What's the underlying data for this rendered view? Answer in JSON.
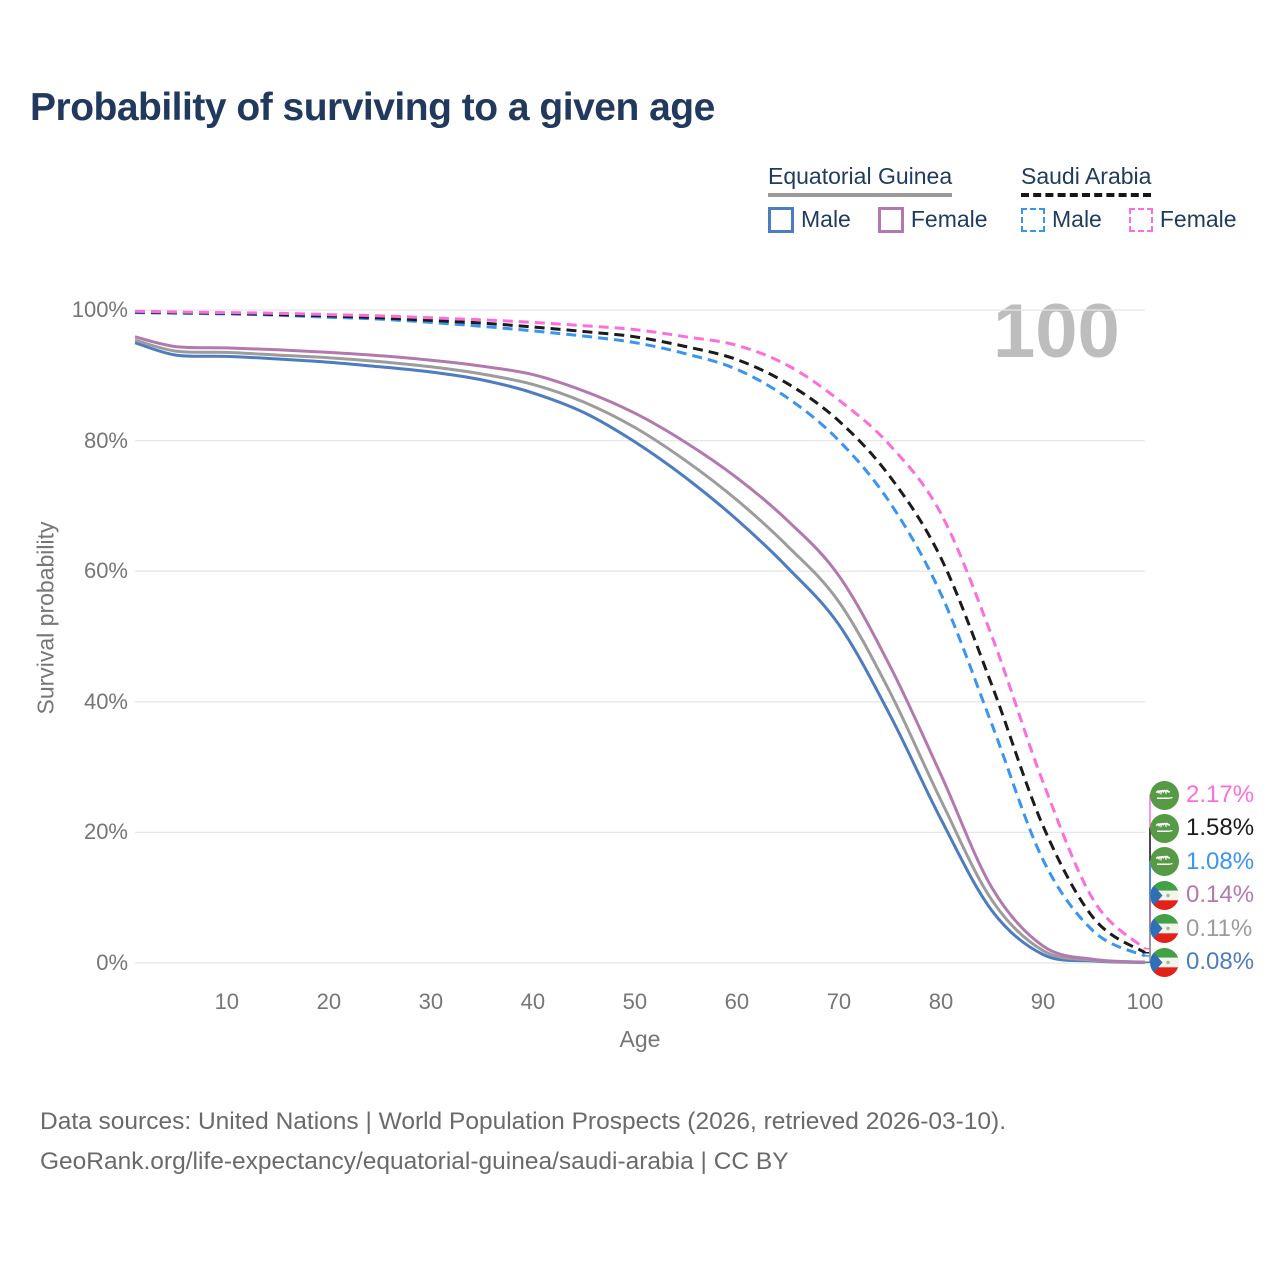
{
  "title": "Probability of surviving to a given age",
  "watermark": "100",
  "legend": {
    "groups": [
      {
        "label": "Equatorial Guinea",
        "line_style": "solid",
        "underline_color": "#9a9a9a",
        "items": [
          {
            "label": "Male",
            "color": "#4d7cc0"
          },
          {
            "label": "Female",
            "color": "#b379ae"
          }
        ]
      },
      {
        "label": "Saudi Arabia",
        "line_style": "dashed",
        "underline_color": "#161616",
        "items": [
          {
            "label": "Male",
            "color": "#3994f2"
          },
          {
            "label": "Female",
            "color": "#fb6edd"
          }
        ]
      }
    ]
  },
  "chart_data": {
    "type": "line",
    "title": "Probability of surviving to a given age",
    "xlabel": "Age",
    "ylabel": "Survival probability",
    "xlim": [
      1,
      100
    ],
    "ylim": [
      0,
      100
    ],
    "grid": "horizontal",
    "legend_position": "top-right",
    "xticks": [
      {
        "label": "10",
        "value": 10
      },
      {
        "label": "20",
        "value": 20
      },
      {
        "label": "30",
        "value": 30
      },
      {
        "label": "40",
        "value": 40
      },
      {
        "label": "50",
        "value": 50
      },
      {
        "label": "60",
        "value": 60
      },
      {
        "label": "70",
        "value": 70
      },
      {
        "label": "80",
        "value": 80
      },
      {
        "label": "90",
        "value": 90
      },
      {
        "label": "100",
        "value": 100
      }
    ],
    "yticks": [
      {
        "label": "0%",
        "value": 0
      },
      {
        "label": "20%",
        "value": 20
      },
      {
        "label": "40%",
        "value": 40
      },
      {
        "label": "60%",
        "value": 60
      },
      {
        "label": "80%",
        "value": 80
      },
      {
        "label": "100%",
        "value": 100
      }
    ],
    "x": [
      1,
      5,
      10,
      15,
      20,
      25,
      30,
      35,
      40,
      45,
      50,
      55,
      60,
      65,
      70,
      75,
      80,
      85,
      90,
      95,
      100
    ],
    "series": [
      {
        "name": "Equatorial Guinea — Male",
        "country": "gq",
        "sex": "male",
        "color": "#4d7cc0",
        "dashed": false,
        "end_label": "0.08%",
        "values": [
          95.0,
          93.1,
          92.9,
          92.5,
          92.0,
          91.3,
          90.5,
          89.3,
          87.3,
          84.3,
          79.8,
          74.3,
          67.9,
          60.5,
          51.8,
          38.0,
          22.0,
          8.0,
          1.3,
          0.3,
          0.08
        ]
      },
      {
        "name": "Equatorial Guinea — Total",
        "country": "gq",
        "sex": "both",
        "color": "#9c9c9c",
        "dashed": false,
        "end_label": "0.11%",
        "values": [
          95.4,
          93.7,
          93.5,
          93.1,
          92.7,
          92.1,
          91.3,
          90.2,
          88.6,
          85.9,
          82.0,
          76.9,
          70.9,
          63.8,
          55.3,
          41.5,
          24.9,
          9.6,
          1.9,
          0.4,
          0.11
        ]
      },
      {
        "name": "Equatorial Guinea — Female",
        "country": "gq",
        "sex": "female",
        "color": "#b379ae",
        "dashed": false,
        "end_label": "0.14%",
        "values": [
          95.9,
          94.4,
          94.2,
          93.9,
          93.5,
          93.0,
          92.3,
          91.4,
          90.1,
          87.6,
          84.2,
          79.7,
          74.3,
          67.7,
          59.3,
          45.5,
          28.8,
          11.5,
          2.6,
          0.55,
          0.14
        ]
      },
      {
        "name": "Saudi Arabia — Male",
        "country": "sa",
        "sex": "male",
        "color": "#3994f2",
        "dashed": true,
        "end_label": "1.08%",
        "values": [
          99.6,
          99.5,
          99.4,
          99.2,
          98.9,
          98.6,
          98.1,
          97.5,
          96.8,
          96.0,
          95.0,
          93.3,
          90.9,
          86.5,
          80.0,
          70.5,
          56.5,
          36.5,
          15.8,
          4.8,
          1.08
        ]
      },
      {
        "name": "Saudi Arabia — Total",
        "country": "sa",
        "sex": "both",
        "color": "#1b1b1b",
        "dashed": true,
        "end_label": "1.58%",
        "values": [
          99.7,
          99.6,
          99.5,
          99.3,
          99.1,
          98.8,
          98.4,
          98.0,
          97.4,
          96.7,
          95.9,
          94.4,
          92.4,
          88.7,
          83.0,
          74.5,
          62.0,
          42.5,
          21.0,
          6.8,
          1.58
        ]
      },
      {
        "name": "Saudi Arabia — Female",
        "country": "sa",
        "sex": "female",
        "color": "#fb6edd",
        "dashed": true,
        "end_label": "2.17%",
        "values": [
          99.8,
          99.7,
          99.6,
          99.5,
          99.3,
          99.1,
          98.8,
          98.5,
          98.1,
          97.6,
          97.0,
          95.9,
          94.6,
          91.5,
          86.2,
          79.3,
          68.8,
          50.0,
          27.7,
          9.5,
          2.17
        ]
      }
    ]
  },
  "footer": {
    "line1": "Data sources: United Nations | World Population Prospects (2026, retrieved 2026-03-10).",
    "line2": "GeoRank.org/life-expectancy/equatorial-guinea/saudi-arabia | CC BY"
  }
}
